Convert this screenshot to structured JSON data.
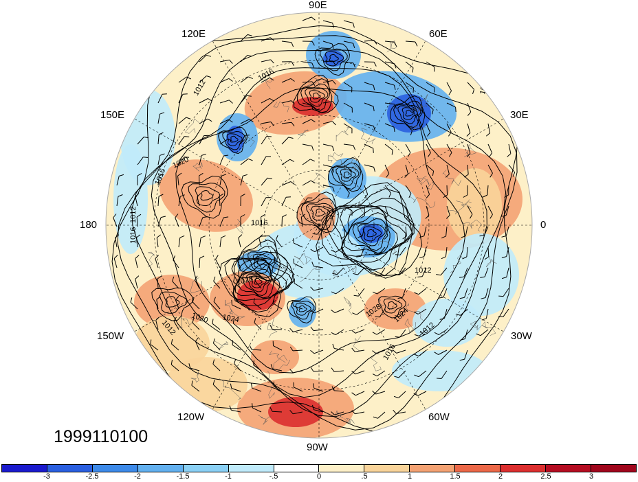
{
  "timestamp": "1999110100",
  "longitude_labels": [
    "90E",
    "60E",
    "30E",
    "0",
    "30W",
    "60W",
    "90W",
    "120W",
    "150W",
    "180",
    "150E",
    "120E"
  ],
  "isobar_labels": [
    "1016",
    "1012",
    "1020",
    "1016",
    "1012",
    "1016",
    "1028",
    "1024",
    "1020",
    "1012",
    "1024",
    "1028",
    "1016",
    "1012",
    "1012",
    "1016",
    "1016"
  ],
  "colorbar": {
    "ticks": [
      "-3",
      "-2.5",
      "-2",
      "-1.5",
      "-1",
      "-.5",
      "0",
      ".5",
      "1",
      "1.5",
      "2",
      "2.5",
      "3"
    ],
    "colors": [
      "#1a1acd",
      "#2a5fe0",
      "#3d8ae9",
      "#62b0ef",
      "#8ad0f5",
      "#c0ebfb",
      "#ffffff",
      "#fdf0c8",
      "#f9d49a",
      "#f4a273",
      "#ec6848",
      "#dc2f2f",
      "#b50d21",
      "#a0061c"
    ]
  },
  "anomaly_colors": {
    "strong_positive": "#dc2f2f",
    "positive": "#f4a273",
    "weak_positive": "#f9d49a",
    "weak_negative": "#c0ebfb",
    "negative": "#62b0ef",
    "strong_negative": "#2a5fe0"
  }
}
